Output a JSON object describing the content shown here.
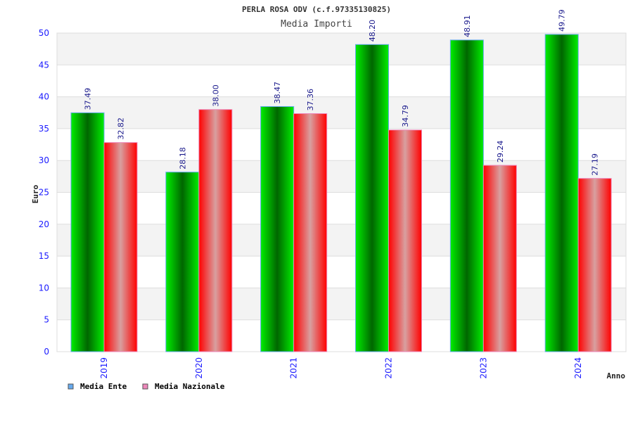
{
  "chart_data": {
    "type": "bar",
    "title": "PERLA ROSA ODV (c.f.97335130825)",
    "subtitle": "Media Importi",
    "xlabel": "Anno",
    "ylabel": "Euro",
    "ylim": [
      0,
      50
    ],
    "yticks": [
      "0",
      "5",
      "10",
      "15",
      "20",
      "25",
      "30",
      "35",
      "40",
      "45",
      "50"
    ],
    "categories": [
      "2019",
      "2020",
      "2021",
      "2022",
      "2023",
      "2024"
    ],
    "series": [
      {
        "name": "Media Ente",
        "values": [
          37.49,
          28.18,
          38.47,
          48.2,
          48.91,
          49.79
        ],
        "labels": [
          "37.49",
          "28.18",
          "38.47",
          "48.20",
          "48.91",
          "49.79"
        ],
        "color": "#00dd00",
        "legend_color": "#66aaee"
      },
      {
        "name": "Media Nazionale",
        "values": [
          32.82,
          38.0,
          37.36,
          34.79,
          29.24,
          27.19
        ],
        "labels": [
          "32.82",
          "38.00",
          "37.36",
          "34.79",
          "29.24",
          "27.19"
        ],
        "color": "#ff0000",
        "legend_color": "#ee88bb"
      }
    ],
    "grid": true,
    "legend_position": "bottom-left"
  }
}
